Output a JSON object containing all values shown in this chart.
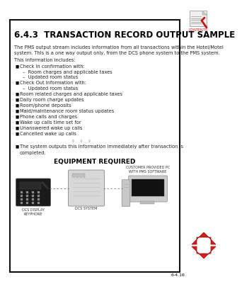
{
  "title": "6.4.3  TRANSACTION RECORD OUTPUT SAMPLE",
  "bg_color": "#ffffff",
  "border_color": "#000000",
  "page_number": "6-4.16",
  "body_text_1": "The PMS output stream includes information from all transactions within the Hotel/Motel\nsystem. This is a one way output only, from the DCS phone system to the PMS system.",
  "body_text_2": "This information includes:",
  "bullet_items": [
    {
      "level": 1,
      "text": "Check In confirmation with:"
    },
    {
      "level": 2,
      "text": "–  Room charges and applicable taxes"
    },
    {
      "level": 2,
      "text": "–  Updated room status"
    },
    {
      "level": 1,
      "text": "Check Out information with:"
    },
    {
      "level": 2,
      "text": "–  Updated room status"
    },
    {
      "level": 1,
      "text": "Room related charges and applicable taxes"
    },
    {
      "level": 1,
      "text": "Daily room charge updates"
    },
    {
      "level": 1,
      "text": "Room/phone deposits"
    },
    {
      "level": 1,
      "text": "Maid/maintenance room status updates"
    },
    {
      "level": 1,
      "text": "Phone calls and charges"
    },
    {
      "level": 1,
      "text": "Wake up calls time set for"
    },
    {
      "level": 1,
      "text": "Unanswered wake up calls"
    },
    {
      "level": 1,
      "text": "Cancelled wake up calls"
    }
  ],
  "separator_dots": "◦   ◦   ◦",
  "final_bullet": "The system outputs this information immediately after transaction is\ncompleted.",
  "equipment_title": "EQUIPMENT REQUIRED",
  "label_phone": "DCS DISPLAY\nKEYPHONE",
  "label_dcs": "DCS SYSTEM",
  "label_pc": "CUSTOMER PROVIDED PC\nWITH PMS SOFTWARE",
  "contents_label": "CONTENTS",
  "title_color": "#000000",
  "text_color": "#222222",
  "bullet_color": "#000000",
  "red_color": "#cc1111",
  "arrow_up_color": "#cc2222",
  "arrow_down_color": "#cc2222"
}
